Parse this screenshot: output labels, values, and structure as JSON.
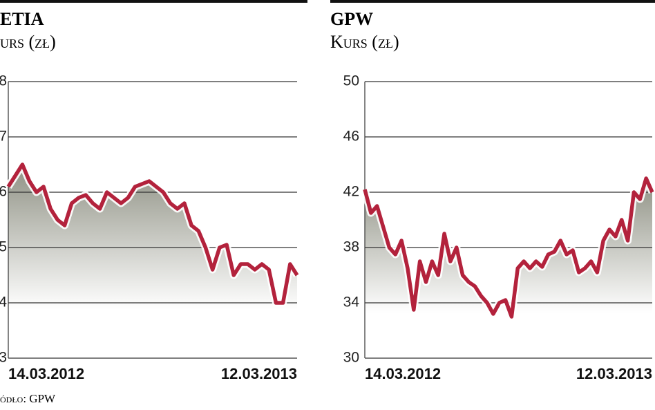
{
  "chart_data": [
    {
      "type": "line",
      "title": "ETIA",
      "subtitle": "urs (zł)",
      "categories": [
        "14.03.2012",
        null,
        null,
        null,
        null,
        null,
        null,
        null,
        null,
        null,
        null,
        null,
        null,
        null,
        null,
        null,
        null,
        null,
        null,
        null,
        null,
        null,
        null,
        null,
        null,
        null,
        null,
        null,
        null,
        null,
        null,
        null,
        null,
        null,
        null,
        null,
        null,
        null,
        null,
        null,
        null,
        "12.03.2013"
      ],
      "values": [
        6.1,
        6.3,
        6.5,
        6.2,
        6.0,
        6.1,
        5.7,
        5.5,
        5.4,
        5.8,
        5.9,
        5.95,
        5.8,
        5.7,
        6.0,
        5.9,
        5.8,
        5.9,
        6.1,
        6.15,
        6.2,
        6.1,
        6.0,
        5.8,
        5.7,
        5.8,
        5.4,
        5.3,
        5.0,
        4.6,
        5.0,
        5.05,
        4.5,
        4.7,
        4.7,
        4.6,
        4.7,
        4.6,
        4.0,
        4.0,
        4.7,
        4.5
      ],
      "color": "#b3223c",
      "ylim": [
        3,
        8
      ],
      "yticks": [
        3,
        4,
        5,
        6,
        7,
        8
      ],
      "grid": true
    },
    {
      "type": "line",
      "title": "GPW",
      "subtitle": "Kurs (zł)",
      "categories": [
        "14.03.2012",
        null,
        null,
        null,
        null,
        null,
        null,
        null,
        null,
        null,
        null,
        null,
        null,
        null,
        null,
        null,
        null,
        null,
        null,
        null,
        null,
        null,
        null,
        null,
        null,
        null,
        null,
        null,
        null,
        null,
        null,
        null,
        null,
        null,
        null,
        null,
        null,
        null,
        null,
        null,
        null,
        null,
        null,
        null,
        null,
        null,
        null,
        "12.03.2013"
      ],
      "values": [
        42.2,
        40.5,
        41,
        39.5,
        38,
        37.5,
        38.5,
        36.5,
        33.5,
        37,
        35.5,
        37,
        36,
        39,
        37,
        38,
        36,
        35.5,
        35.2,
        34.5,
        34,
        33.2,
        34,
        34.2,
        33,
        36.5,
        37,
        36.5,
        37,
        36.6,
        37.5,
        37.7,
        38.5,
        37.5,
        37.8,
        36.2,
        36.5,
        37,
        36.2,
        38.5,
        39.3,
        38.8,
        40,
        38.5,
        42,
        41.5,
        43,
        42
      ],
      "color": "#b3223c",
      "ylim": [
        30,
        50
      ],
      "yticks": [
        30,
        34,
        38,
        42,
        46,
        50
      ],
      "grid": true
    }
  ],
  "source": "ódło: GPW"
}
